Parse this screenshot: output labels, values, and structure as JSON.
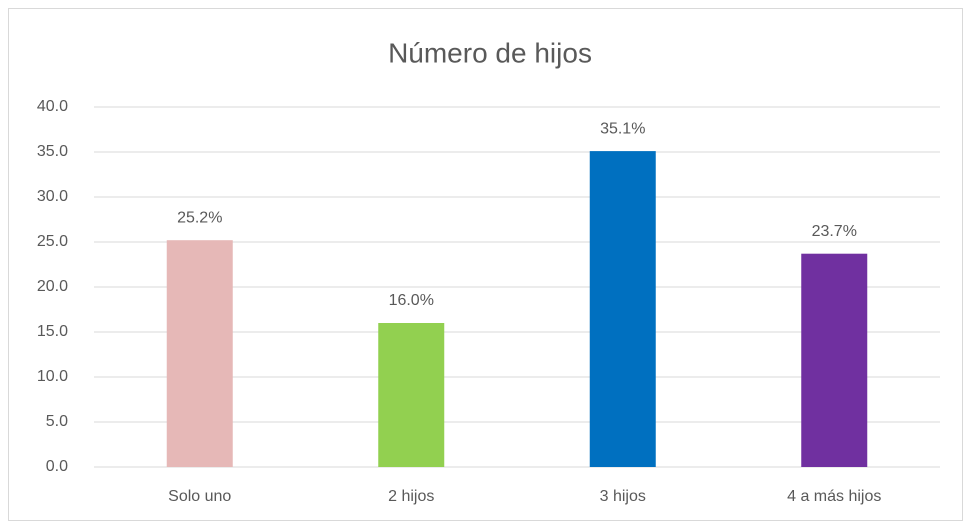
{
  "chart_data": {
    "type": "bar",
    "title": "Número de hijos",
    "categories": [
      "Solo uno",
      "2 hijos",
      "3 hijos",
      "4 a más hijos"
    ],
    "values": [
      25.2,
      16.0,
      35.1,
      23.7
    ],
    "value_labels": [
      "25.2%",
      "16.0%",
      "35.1%",
      "23.7%"
    ],
    "colors": [
      "#e6b8b7",
      "#92d050",
      "#0070c0",
      "#7030a0"
    ],
    "ylim": [
      0,
      40
    ],
    "yticks": [
      {
        "value": 0,
        "label": "0.0"
      },
      {
        "value": 5,
        "label": "5.0"
      },
      {
        "value": 10,
        "label": "10.0"
      },
      {
        "value": 15,
        "label": "15.0"
      },
      {
        "value": 20,
        "label": "20.0"
      },
      {
        "value": 25,
        "label": "25.0"
      },
      {
        "value": 30,
        "label": "30.0"
      },
      {
        "value": 35,
        "label": "35.0"
      },
      {
        "value": 40,
        "label": "40.0"
      }
    ],
    "grid": true
  }
}
